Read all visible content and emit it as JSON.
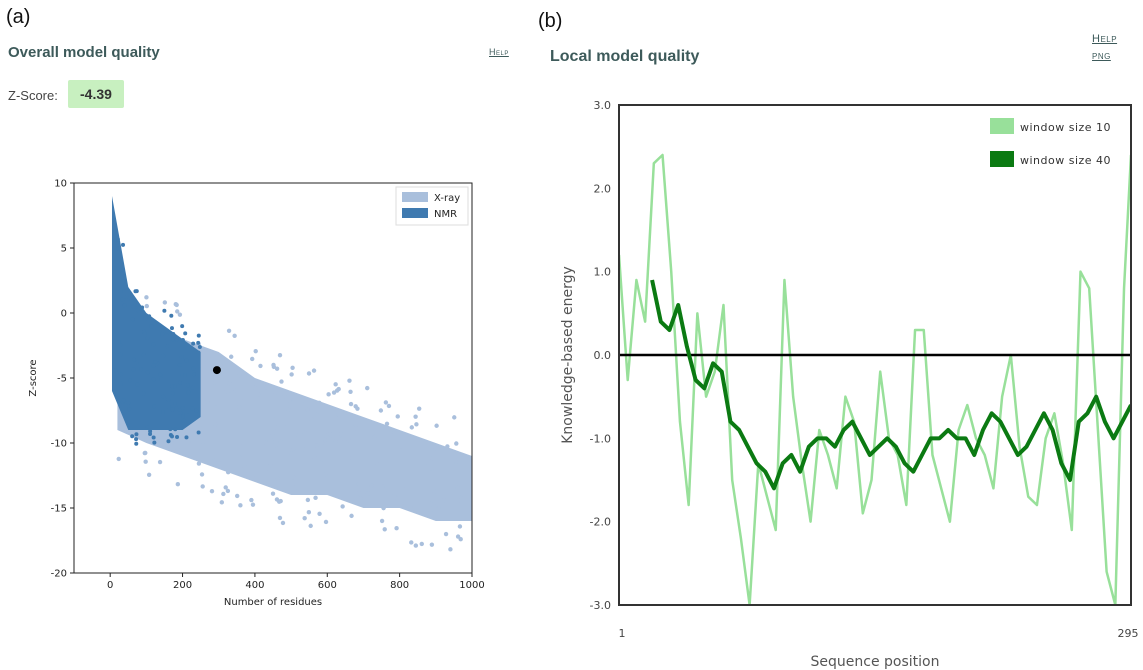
{
  "panel_a": {
    "panel_label": "(a)",
    "title": "Overall model quality",
    "help_label": "Help",
    "zscore_label": "Z-Score:",
    "zscore_value": "-4.39"
  },
  "panel_b": {
    "panel_label": "(b)",
    "title": "Local model quality",
    "help_label": "Help",
    "png_label": "png"
  },
  "colors": {
    "xray": "#a9bfdc",
    "nmr": "#3f7ab0",
    "model_point": "#000000",
    "window10": "#98e09a",
    "window40": "#0b7a12",
    "zero_line": "#000000",
    "zscore_badge": "#c8f0c0"
  },
  "chart_data": [
    {
      "type": "scatter",
      "xlabel": "Number of residues",
      "ylabel": "Z-score",
      "xlim": [
        -100,
        1000
      ],
      "ylim": [
        -20,
        10
      ],
      "x_ticks": [
        0,
        200,
        400,
        600,
        800,
        1000
      ],
      "y_ticks": [
        10,
        5,
        0,
        -5,
        -10,
        -15,
        -20
      ],
      "legend": [
        "X-ray",
        "NMR"
      ],
      "legend_position": "top-right",
      "series": [
        {
          "name": "X-ray",
          "description_band": [
            [
              20,
              1,
              -9
            ],
            [
              100,
              -1,
              -10
            ],
            [
              200,
              -2,
              -11
            ],
            [
              300,
              -3,
              -12
            ],
            [
              400,
              -5,
              -13
            ],
            [
              500,
              -6,
              -14
            ],
            [
              600,
              -7,
              -14
            ],
            [
              700,
              -8,
              -15
            ],
            [
              800,
              -9,
              -15
            ],
            [
              900,
              -10,
              -16
            ],
            [
              1000,
              -11,
              -16
            ]
          ]
        },
        {
          "name": "NMR",
          "description_band": [
            [
              5,
              9,
              -6
            ],
            [
              50,
              2,
              -9
            ],
            [
              100,
              0,
              -9
            ],
            [
              150,
              -1,
              -9
            ],
            [
              200,
              -2,
              -9
            ],
            [
              250,
              -3,
              -8
            ]
          ]
        }
      ],
      "highlight_point": {
        "x": 295,
        "y": -4.39
      }
    },
    {
      "type": "line",
      "xlabel": "Sequence position",
      "ylabel": "Knowledge-based energy",
      "xlim": [
        1,
        295
      ],
      "ylim": [
        -3.0,
        3.0
      ],
      "x_ticks": [
        1,
        295
      ],
      "y_ticks": [
        "3.0",
        "2.0",
        "1.0",
        "0.0",
        "-1.0",
        "-2.0",
        "-3.0"
      ],
      "legend_position": "top-right",
      "series": [
        {
          "name": "window size 10",
          "x": [
            1,
            6,
            11,
            16,
            21,
            26,
            31,
            36,
            41,
            46,
            51,
            56,
            61,
            66,
            71,
            76,
            81,
            86,
            91,
            96,
            101,
            106,
            111,
            116,
            121,
            126,
            131,
            136,
            141,
            146,
            151,
            156,
            161,
            166,
            171,
            176,
            181,
            186,
            191,
            196,
            201,
            206,
            211,
            216,
            221,
            226,
            231,
            236,
            241,
            246,
            251,
            256,
            261,
            266,
            271,
            276,
            281,
            286,
            291,
            295
          ],
          "y": [
            1.2,
            -0.3,
            0.9,
            0.4,
            2.3,
            2.4,
            1.0,
            -0.8,
            -1.8,
            0.5,
            -0.5,
            -0.2,
            0.6,
            -1.5,
            -2.2,
            -3.0,
            -1.3,
            -1.7,
            -2.1,
            0.9,
            -0.5,
            -1.3,
            -2.0,
            -0.9,
            -1.2,
            -1.6,
            -0.5,
            -0.8,
            -1.9,
            -1.5,
            -0.2,
            -1.0,
            -1.2,
            -1.8,
            0.3,
            0.3,
            -1.2,
            -1.6,
            -2.0,
            -0.9,
            -0.6,
            -1.0,
            -1.2,
            -1.6,
            -0.5,
            0.0,
            -1.1,
            -1.7,
            -1.8,
            -1.0,
            -0.7,
            -1.3,
            -2.1,
            1.0,
            0.8,
            -0.9,
            -2.6,
            -3.0,
            0.8,
            2.4
          ]
        },
        {
          "name": "window size 40",
          "x": [
            20,
            25,
            30,
            35,
            40,
            45,
            50,
            55,
            60,
            65,
            70,
            75,
            80,
            85,
            90,
            95,
            100,
            105,
            110,
            115,
            120,
            125,
            130,
            135,
            140,
            145,
            150,
            155,
            160,
            165,
            170,
            175,
            180,
            185,
            190,
            195,
            200,
            205,
            210,
            215,
            220,
            225,
            230,
            235,
            240,
            245,
            250,
            255,
            260,
            265,
            270,
            275,
            280,
            285,
            290,
            295
          ],
          "y": [
            0.9,
            0.4,
            0.3,
            0.6,
            0.1,
            -0.3,
            -0.4,
            -0.1,
            -0.2,
            -0.8,
            -0.9,
            -1.1,
            -1.3,
            -1.4,
            -1.6,
            -1.3,
            -1.2,
            -1.4,
            -1.1,
            -1.0,
            -1.0,
            -1.1,
            -0.9,
            -0.8,
            -1.0,
            -1.2,
            -1.1,
            -1.0,
            -1.1,
            -1.3,
            -1.4,
            -1.2,
            -1.0,
            -1.0,
            -0.9,
            -1.0,
            -1.0,
            -1.2,
            -0.9,
            -0.7,
            -0.8,
            -1.0,
            -1.2,
            -1.1,
            -0.9,
            -0.7,
            -0.9,
            -1.3,
            -1.5,
            -0.8,
            -0.7,
            -0.5,
            -0.8,
            -1.0,
            -0.8,
            -0.6
          ]
        }
      ],
      "zero_line": 0.0
    }
  ]
}
